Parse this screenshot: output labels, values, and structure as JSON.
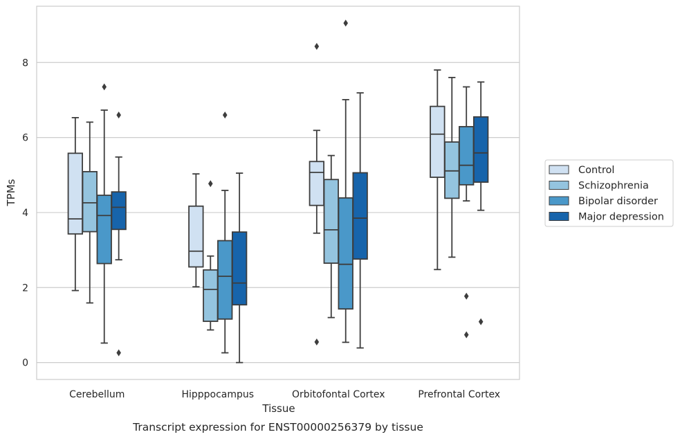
{
  "chart_data": {
    "type": "box",
    "caption": "Transcript expression for ENST00000256379 by tissue",
    "xlabel": "Tissue",
    "ylabel": "TPMs",
    "ylim": [
      -0.45,
      9.5
    ],
    "yticks": [
      0,
      2,
      4,
      6,
      8
    ],
    "grid": "horizontal",
    "legend_position": "right",
    "categories": [
      "Cerebellum",
      "Hipppocampus",
      "Orbitofontal Cortex",
      "Prefrontal Cortex"
    ],
    "series": [
      {
        "name": "Control",
        "color": "#d0e1f2",
        "boxes": [
          {
            "whisker_low": 1.92,
            "q1": 3.43,
            "median": 3.83,
            "q3": 5.58,
            "whisker_high": 6.53,
            "outliers": []
          },
          {
            "whisker_low": 2.02,
            "q1": 2.55,
            "median": 2.97,
            "q3": 4.17,
            "whisker_high": 5.03,
            "outliers": []
          },
          {
            "whisker_low": 3.45,
            "q1": 4.19,
            "median": 5.07,
            "q3": 5.36,
            "whisker_high": 6.19,
            "outliers": [
              8.43,
              0.55
            ]
          },
          {
            "whisker_low": 2.48,
            "q1": 4.94,
            "median": 6.09,
            "q3": 6.83,
            "whisker_high": 7.8,
            "outliers": []
          }
        ]
      },
      {
        "name": "Schizophrenia",
        "color": "#94c4df",
        "boxes": [
          {
            "whisker_low": 1.59,
            "q1": 3.49,
            "median": 4.26,
            "q3": 5.09,
            "whisker_high": 6.41,
            "outliers": []
          },
          {
            "whisker_low": 0.87,
            "q1": 1.1,
            "median": 1.95,
            "q3": 2.47,
            "whisker_high": 2.84,
            "outliers": [
              4.77
            ]
          },
          {
            "whisker_low": 1.2,
            "q1": 2.65,
            "median": 3.54,
            "q3": 4.88,
            "whisker_high": 5.52,
            "outliers": []
          },
          {
            "whisker_low": 2.81,
            "q1": 4.38,
            "median": 5.11,
            "q3": 5.88,
            "whisker_high": 7.6,
            "outliers": []
          }
        ]
      },
      {
        "name": "Bipolar disorder",
        "color": "#4a98c9",
        "boxes": [
          {
            "whisker_low": 0.52,
            "q1": 2.64,
            "median": 3.92,
            "q3": 4.46,
            "whisker_high": 6.73,
            "outliers": [
              7.35
            ]
          },
          {
            "whisker_low": 0.26,
            "q1": 1.16,
            "median": 2.3,
            "q3": 3.25,
            "whisker_high": 4.59,
            "outliers": [
              6.6
            ]
          },
          {
            "whisker_low": 0.54,
            "q1": 1.43,
            "median": 2.62,
            "q3": 4.39,
            "whisker_high": 7.01,
            "outliers": [
              9.05
            ]
          },
          {
            "whisker_low": 4.31,
            "q1": 4.74,
            "median": 5.26,
            "q3": 6.29,
            "whisker_high": 7.35,
            "outliers": [
              1.77,
              0.74
            ]
          }
        ]
      },
      {
        "name": "Major depression",
        "color": "#1764ab",
        "boxes": [
          {
            "whisker_low": 2.74,
            "q1": 3.55,
            "median": 4.14,
            "q3": 4.55,
            "whisker_high": 5.48,
            "outliers": [
              6.6,
              0.26
            ]
          },
          {
            "whisker_low": 0.0,
            "q1": 1.54,
            "median": 2.12,
            "q3": 3.48,
            "whisker_high": 5.05,
            "outliers": []
          },
          {
            "whisker_low": 0.39,
            "q1": 2.76,
            "median": 3.85,
            "q3": 5.06,
            "whisker_high": 7.19,
            "outliers": []
          },
          {
            "whisker_low": 4.06,
            "q1": 4.81,
            "median": 5.59,
            "q3": 6.55,
            "whisker_high": 7.48,
            "outliers": [
              1.09
            ]
          }
        ]
      }
    ]
  }
}
